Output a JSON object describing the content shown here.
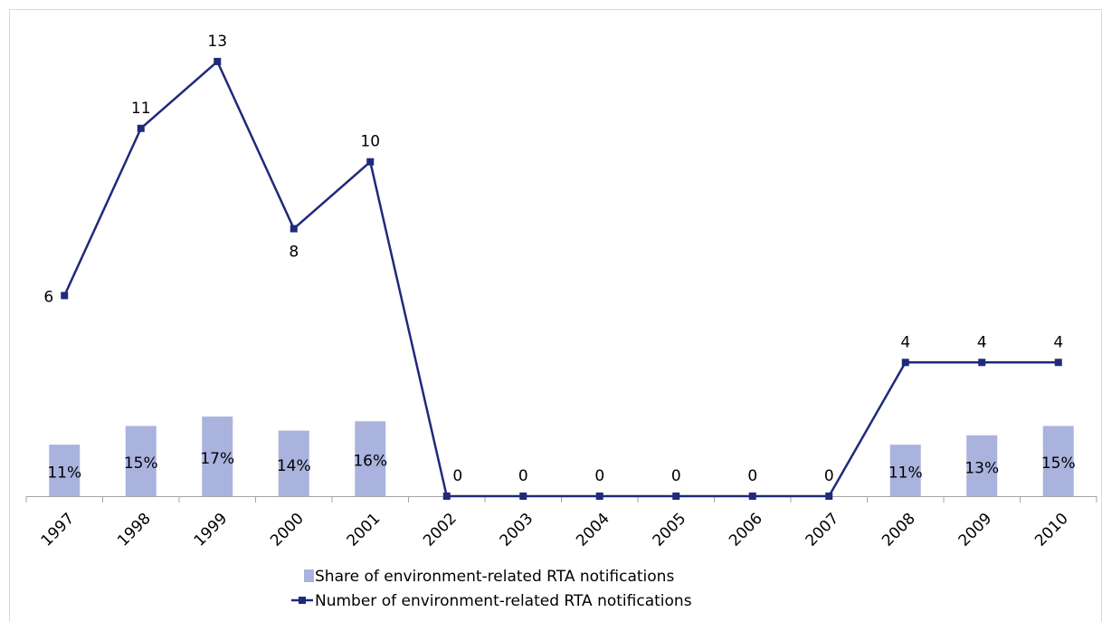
{
  "chart_data": {
    "type": "bar+line",
    "categories": [
      "1997",
      "1998",
      "1999",
      "2000",
      "2001",
      "2002",
      "2003",
      "2004",
      "2005",
      "2006",
      "2007",
      "2008",
      "2009",
      "2010"
    ],
    "series": [
      {
        "name": "Share of environment-related RTA notifications",
        "type": "bar",
        "color": "#aab3de",
        "values": [
          11,
          15,
          17,
          14,
          16,
          null,
          null,
          null,
          null,
          null,
          null,
          11,
          13,
          15
        ],
        "value_labels": [
          "11%",
          "15%",
          "17%",
          "14%",
          "16%",
          null,
          null,
          null,
          null,
          null,
          null,
          "11%",
          "13%",
          "15%"
        ]
      },
      {
        "name": "Number of environment-related RTA notifications",
        "type": "line",
        "axis": "y2",
        "color": "#1f2a7a",
        "values": [
          6,
          11,
          13,
          8,
          10,
          0,
          0,
          0,
          0,
          0,
          0,
          4,
          4,
          4
        ]
      }
    ],
    "ylim": [
      0,
      100
    ],
    "y2lim": [
      0,
      14
    ]
  }
}
